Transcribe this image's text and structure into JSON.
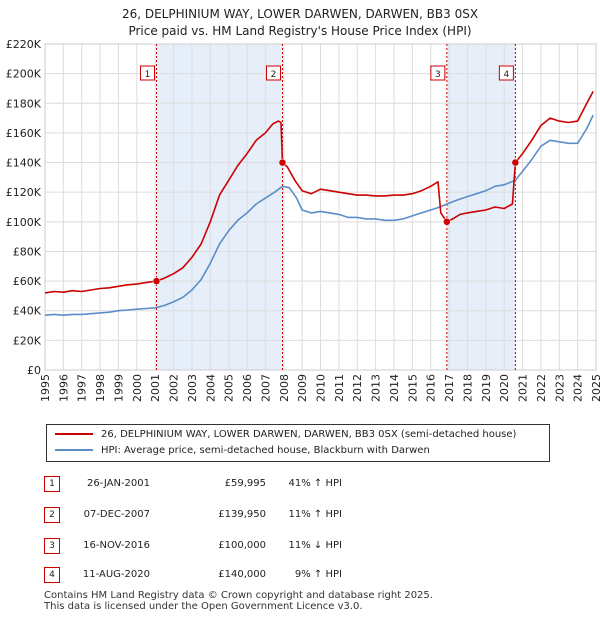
{
  "title_line1": "26, DELPHINIUM WAY, LOWER DARWEN, DARWEN, BB3 0SX",
  "title_line2": "Price paid vs. HM Land Registry's House Price Index (HPI)",
  "chart_data": {
    "type": "line",
    "title": "26, DELPHINIUM WAY, LOWER DARWEN, DARWEN, BB3 0SX",
    "subtitle": "Price paid vs. HM Land Registry's House Price Index (HPI)",
    "xlabel": "",
    "ylabel": "",
    "xlim": [
      1995,
      2025
    ],
    "ylim": [
      0,
      220000
    ],
    "grid": true,
    "y_ticks": [
      0,
      20000,
      40000,
      60000,
      80000,
      100000,
      120000,
      140000,
      160000,
      180000,
      200000,
      220000
    ],
    "y_tick_labels": [
      "£0",
      "£20K",
      "£40K",
      "£60K",
      "£80K",
      "£100K",
      "£120K",
      "£140K",
      "£160K",
      "£180K",
      "£200K",
      "£220K"
    ],
    "x_ticks": [
      1995,
      1996,
      1997,
      1998,
      1999,
      2000,
      2001,
      2002,
      2003,
      2004,
      2005,
      2006,
      2007,
      2008,
      2009,
      2010,
      2011,
      2012,
      2013,
      2014,
      2015,
      2016,
      2017,
      2018,
      2019,
      2020,
      2021,
      2022,
      2023,
      2024,
      2025
    ],
    "x_tick_labels": [
      "1995",
      "1996",
      "1997",
      "1998",
      "1999",
      "2000",
      "2001",
      "2002",
      "2003",
      "2004",
      "2005",
      "2006",
      "2007",
      "2008",
      "2009",
      "2010",
      "2011",
      "2012",
      "2013",
      "2014",
      "2015",
      "2016",
      "2017",
      "2018",
      "2019",
      "2020",
      "2021",
      "2022",
      "2023",
      "2024",
      "2025"
    ],
    "series": [
      {
        "name": "26, DELPHINIUM WAY, LOWER DARWEN, DARWEN, BB3 0SX (semi-detached house)",
        "color": "#cc0000",
        "points": [
          [
            1995.0,
            52000
          ],
          [
            1995.5,
            53000
          ],
          [
            1996.0,
            52500
          ],
          [
            1996.5,
            53500
          ],
          [
            1997.0,
            53000
          ],
          [
            1997.5,
            54000
          ],
          [
            1998.0,
            55000
          ],
          [
            1998.5,
            55500
          ],
          [
            1999.0,
            56500
          ],
          [
            1999.5,
            57500
          ],
          [
            2000.0,
            58000
          ],
          [
            2000.5,
            59000
          ],
          [
            2001.07,
            59995
          ],
          [
            2001.5,
            62000
          ],
          [
            2002.0,
            65000
          ],
          [
            2002.5,
            69000
          ],
          [
            2003.0,
            76000
          ],
          [
            2003.5,
            85000
          ],
          [
            2004.0,
            100000
          ],
          [
            2004.5,
            118000
          ],
          [
            2005.0,
            128000
          ],
          [
            2005.5,
            138000
          ],
          [
            2006.0,
            146000
          ],
          [
            2006.5,
            155000
          ],
          [
            2007.0,
            160000
          ],
          [
            2007.4,
            166000
          ],
          [
            2007.7,
            168000
          ],
          [
            2007.85,
            167000
          ],
          [
            2007.93,
            139950
          ],
          [
            2008.2,
            137000
          ],
          [
            2008.6,
            128000
          ],
          [
            2009.0,
            121000
          ],
          [
            2009.5,
            119000
          ],
          [
            2010.0,
            122000
          ],
          [
            2010.5,
            121000
          ],
          [
            2011.0,
            120000
          ],
          [
            2011.5,
            119000
          ],
          [
            2012.0,
            118000
          ],
          [
            2012.5,
            118000
          ],
          [
            2013.0,
            117500
          ],
          [
            2013.5,
            117500
          ],
          [
            2014.0,
            118000
          ],
          [
            2014.5,
            118000
          ],
          [
            2015.0,
            119000
          ],
          [
            2015.5,
            121000
          ],
          [
            2016.0,
            124000
          ],
          [
            2016.4,
            127000
          ],
          [
            2016.55,
            106000
          ],
          [
            2016.88,
            100000
          ],
          [
            2017.2,
            102000
          ],
          [
            2017.6,
            105000
          ],
          [
            2018.0,
            106000
          ],
          [
            2018.5,
            107000
          ],
          [
            2019.0,
            108000
          ],
          [
            2019.5,
            110000
          ],
          [
            2020.0,
            109000
          ],
          [
            2020.45,
            112000
          ],
          [
            2020.61,
            140000
          ],
          [
            2021.0,
            146000
          ],
          [
            2021.5,
            155000
          ],
          [
            2022.0,
            165000
          ],
          [
            2022.5,
            170000
          ],
          [
            2023.0,
            168000
          ],
          [
            2023.5,
            167000
          ],
          [
            2024.0,
            168000
          ],
          [
            2024.5,
            180000
          ],
          [
            2024.85,
            188000
          ]
        ]
      },
      {
        "name": "HPI: Average price, semi-detached house, Blackburn with Darwen",
        "color": "#5b8ec8",
        "points": [
          [
            1995.0,
            37000
          ],
          [
            1995.5,
            37500
          ],
          [
            1996.0,
            37000
          ],
          [
            1996.5,
            37500
          ],
          [
            1997.0,
            37500
          ],
          [
            1997.5,
            38000
          ],
          [
            1998.0,
            38500
          ],
          [
            1998.5,
            39000
          ],
          [
            1999.0,
            40000
          ],
          [
            1999.5,
            40500
          ],
          [
            2000.0,
            41000
          ],
          [
            2000.5,
            41500
          ],
          [
            2001.0,
            42000
          ],
          [
            2001.5,
            43500
          ],
          [
            2002.0,
            46000
          ],
          [
            2002.5,
            49000
          ],
          [
            2003.0,
            54000
          ],
          [
            2003.5,
            61000
          ],
          [
            2004.0,
            72000
          ],
          [
            2004.5,
            85000
          ],
          [
            2005.0,
            94000
          ],
          [
            2005.5,
            101000
          ],
          [
            2006.0,
            106000
          ],
          [
            2006.5,
            112000
          ],
          [
            2007.0,
            116000
          ],
          [
            2007.5,
            120000
          ],
          [
            2007.93,
            124000
          ],
          [
            2008.3,
            123000
          ],
          [
            2008.7,
            116000
          ],
          [
            2009.0,
            108000
          ],
          [
            2009.5,
            106000
          ],
          [
            2010.0,
            107000
          ],
          [
            2010.5,
            106000
          ],
          [
            2011.0,
            105000
          ],
          [
            2011.5,
            103000
          ],
          [
            2012.0,
            103000
          ],
          [
            2012.5,
            102000
          ],
          [
            2013.0,
            102000
          ],
          [
            2013.5,
            101000
          ],
          [
            2014.0,
            101000
          ],
          [
            2014.5,
            102000
          ],
          [
            2015.0,
            104000
          ],
          [
            2015.5,
            106000
          ],
          [
            2016.0,
            108000
          ],
          [
            2016.5,
            110000
          ],
          [
            2016.88,
            112000
          ],
          [
            2017.5,
            115000
          ],
          [
            2018.0,
            117000
          ],
          [
            2018.5,
            119000
          ],
          [
            2019.0,
            121000
          ],
          [
            2019.5,
            124000
          ],
          [
            2020.0,
            125000
          ],
          [
            2020.61,
            128000
          ],
          [
            2021.0,
            134000
          ],
          [
            2021.5,
            142000
          ],
          [
            2022.0,
            151000
          ],
          [
            2022.5,
            155000
          ],
          [
            2023.0,
            154000
          ],
          [
            2023.5,
            153000
          ],
          [
            2024.0,
            153000
          ],
          [
            2024.5,
            163000
          ],
          [
            2024.85,
            172000
          ]
        ]
      }
    ],
    "sales": [
      {
        "num": "1",
        "x": 2001.07,
        "y": 59995
      },
      {
        "num": "2",
        "x": 2007.93,
        "y": 139950
      },
      {
        "num": "3",
        "x": 2016.88,
        "y": 100000
      },
      {
        "num": "4",
        "x": 2020.61,
        "y": 140000
      }
    ],
    "shaded_periods": [
      [
        2001.07,
        2007.93
      ],
      [
        2016.88,
        2020.61
      ]
    ],
    "colors": {
      "shade": "#e6eef9",
      "grid": "#dddddd",
      "marker": "#cc0000"
    }
  },
  "legend": {
    "red_label": "26, DELPHINIUM WAY, LOWER DARWEN, DARWEN, BB3 0SX (semi-detached house)",
    "blue_label": "HPI: Average price, semi-detached house, Blackburn with Darwen"
  },
  "table": [
    {
      "num": "1",
      "date": "26-JAN-2001",
      "price": "£59,995",
      "pct": "41% ↑ HPI"
    },
    {
      "num": "2",
      "date": "07-DEC-2007",
      "price": "£139,950",
      "pct": "11% ↑ HPI"
    },
    {
      "num": "3",
      "date": "16-NOV-2016",
      "price": "£100,000",
      "pct": "11% ↓ HPI"
    },
    {
      "num": "4",
      "date": "11-AUG-2020",
      "price": "£140,000",
      "pct": "9% ↑ HPI"
    }
  ],
  "footer": {
    "line1": "Contains HM Land Registry data © Crown copyright and database right 2025.",
    "line2": "This data is licensed under the Open Government Licence v3.0."
  }
}
